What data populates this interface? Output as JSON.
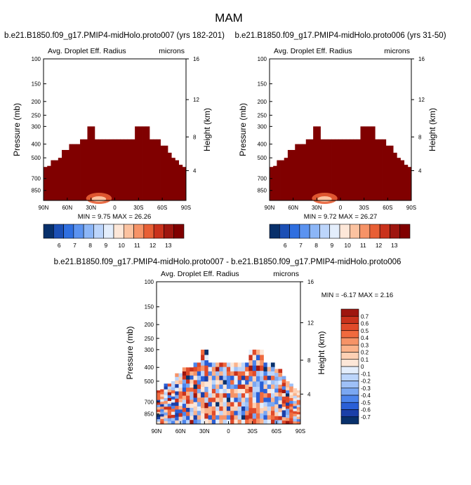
{
  "figure_title": "MAM",
  "chart_data": [
    {
      "type": "heatmap",
      "title": "b.e21.B1850.f09_g17.PMIP4-midHolo.proto007 (yrs 182-201)",
      "left_label": "Avg. Droplet Eff. Radius",
      "right_label": "microns",
      "ylabel": "Pressure (mb)",
      "ylabel_right": "Height (km)",
      "xticks": [
        "90N",
        "60N",
        "30N",
        "0",
        "30S",
        "60S",
        "90S"
      ],
      "yticks": [
        "100",
        "150",
        "200",
        "250",
        "300",
        "400",
        "500",
        "700",
        "850"
      ],
      "yticks_right": [
        "16",
        "12",
        "8",
        "4"
      ],
      "ylim_mb": [
        100,
        1000
      ],
      "xlim_lat": [
        90,
        -90
      ],
      "min_label": "MIN =   9.75  MAX =   26.26",
      "colorbar": {
        "labels": [
          "6",
          "7",
          "8",
          "9",
          "10",
          "11",
          "12",
          "13"
        ],
        "colors": [
          "#08306b",
          "#1b4fb5",
          "#2f6fe0",
          "#5b93f0",
          "#8cb6f7",
          "#bcd5fb",
          "#e4eefc",
          "#fde7d8",
          "#fbc2a0",
          "#f69367",
          "#e85f35",
          "#c9321c",
          "#9e160f",
          "#800000"
        ]
      },
      "cloud_top_mb": [
        580,
        570,
        520,
        520,
        500,
        440,
        440,
        400,
        400,
        400,
        370,
        370,
        300,
        300,
        370,
        370,
        370,
        370,
        370,
        370,
        370,
        370,
        370,
        370,
        370,
        300,
        300,
        300,
        300,
        370,
        370,
        370,
        410,
        410,
        460,
        500,
        520,
        560,
        580
      ],
      "fill_color": "#800000",
      "hotspot": {
        "center_lat": 20,
        "color": "#e85f35"
      }
    },
    {
      "type": "heatmap",
      "title": "b.e21.B1850.f09_g17.PMIP4-midHolo.proto006 (yrs 31-50)",
      "left_label": "Avg. Droplet Eff. Radius",
      "right_label": "microns",
      "ylabel": "Pressure (mb)",
      "ylabel_right": "Height (km)",
      "xticks": [
        "90N",
        "60N",
        "30N",
        "0",
        "30S",
        "60S",
        "90S"
      ],
      "yticks": [
        "100",
        "150",
        "200",
        "250",
        "300",
        "400",
        "500",
        "700",
        "850"
      ],
      "yticks_right": [
        "16",
        "12",
        "8",
        "4"
      ],
      "ylim_mb": [
        100,
        1000
      ],
      "xlim_lat": [
        90,
        -90
      ],
      "min_label": "MIN =   9.72  MAX =   26.27",
      "colorbar": {
        "labels": [
          "6",
          "7",
          "8",
          "9",
          "10",
          "11",
          "12",
          "13"
        ],
        "colors": [
          "#08306b",
          "#1b4fb5",
          "#2f6fe0",
          "#5b93f0",
          "#8cb6f7",
          "#bcd5fb",
          "#e4eefc",
          "#fde7d8",
          "#fbc2a0",
          "#f69367",
          "#e85f35",
          "#c9321c",
          "#9e160f",
          "#800000"
        ]
      },
      "cloud_top_mb": [
        580,
        570,
        520,
        520,
        500,
        440,
        440,
        400,
        400,
        400,
        370,
        370,
        300,
        300,
        370,
        370,
        370,
        370,
        370,
        370,
        370,
        370,
        370,
        370,
        370,
        300,
        300,
        300,
        300,
        370,
        370,
        370,
        410,
        410,
        460,
        500,
        520,
        560,
        580
      ],
      "fill_color": "#800000",
      "hotspot": {
        "center_lat": 20,
        "color": "#e85f35"
      }
    },
    {
      "type": "heatmap",
      "title": "b.e21.B1850.f09_g17.PMIP4-midHolo.proto007 - b.e21.B1850.f09_g17.PMIP4-midHolo.proto006",
      "left_label": "Avg. Droplet Eff. Radius",
      "right_label": "microns",
      "ylabel": "Pressure (mb)",
      "ylabel_right": "Height (km)",
      "xticks": [
        "90N",
        "60N",
        "30N",
        "0",
        "30S",
        "60S",
        "90S"
      ],
      "yticks": [
        "100",
        "150",
        "200",
        "250",
        "300",
        "400",
        "500",
        "700",
        "850"
      ],
      "yticks_right": [
        "16",
        "12",
        "8",
        "4"
      ],
      "ylim_mb": [
        100,
        1000
      ],
      "xlim_lat": [
        90,
        -90
      ],
      "min_label": "MIN =  -6.17  MAX =   2.16",
      "colorbar": {
        "labels": [
          "0.7",
          "0.6",
          "0.5",
          "0.4",
          "0.3",
          "0.2",
          "0.1",
          "0",
          "-0.1",
          "-0.2",
          "-0.3",
          "-0.4",
          "-0.5",
          "-0.6",
          "-0.7"
        ],
        "colors": [
          "#9e160f",
          "#c9321c",
          "#e04a2a",
          "#f06a3e",
          "#f69367",
          "#fbb28a",
          "#fdd0b4",
          "#fde7d8",
          "#e4eefc",
          "#bcd5fb",
          "#9ec0f7",
          "#7aa7f2",
          "#4c84ec",
          "#2a5fd6",
          "#1b3fa8",
          "#08306b"
        ]
      },
      "cloud_top_mb": [
        580,
        570,
        520,
        520,
        500,
        440,
        440,
        400,
        400,
        400,
        370,
        370,
        300,
        300,
        370,
        370,
        370,
        370,
        370,
        370,
        370,
        370,
        370,
        370,
        370,
        300,
        300,
        300,
        300,
        370,
        370,
        370,
        410,
        410,
        460,
        500,
        520,
        560,
        580
      ],
      "value_range": [
        -0.7,
        0.7
      ]
    }
  ]
}
